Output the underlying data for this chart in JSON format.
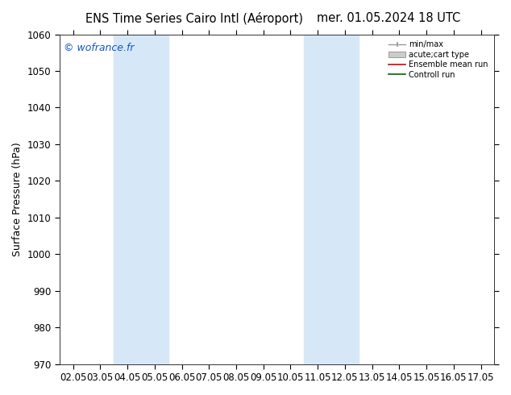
{
  "title_left": "ENS Time Series Cairo Intl (Aéroport)",
  "title_right": "mer. 01.05.2024 18 UTC",
  "ylabel": "Surface Pressure (hPa)",
  "ylim": [
    970,
    1060
  ],
  "yticks": [
    970,
    980,
    990,
    1000,
    1010,
    1020,
    1030,
    1040,
    1050,
    1060
  ],
  "x_labels": [
    "02.05",
    "03.05",
    "04.05",
    "05.05",
    "06.05",
    "07.05",
    "08.05",
    "09.05",
    "10.05",
    "11.05",
    "12.05",
    "13.05",
    "14.05",
    "15.05",
    "16.05",
    "17.05"
  ],
  "blue_band_ranges": [
    [
      2,
      4
    ],
    [
      9,
      11
    ]
  ],
  "blue_band_color": "#d6e8f7",
  "watermark": "© wofrance.fr",
  "legend_entries": [
    "min/max",
    "acute;cart type",
    "Ensemble mean run",
    "Controll run"
  ],
  "legend_line_color": "#999999",
  "legend_patch_color": "#cccccc",
  "legend_red": "#dd0000",
  "legend_green": "#006600",
  "background_color": "#ffffff",
  "title_fontsize": 10.5,
  "ylabel_fontsize": 9,
  "tick_fontsize": 8.5,
  "watermark_color": "#1155cc",
  "watermark_fontsize": 9
}
